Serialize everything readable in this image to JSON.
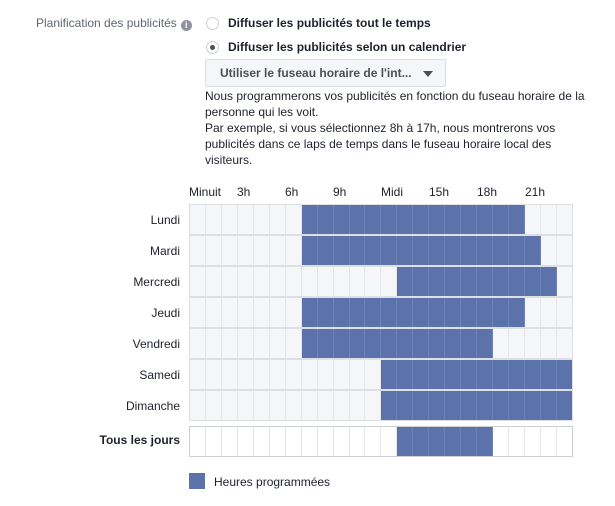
{
  "field_label": "Planification des publicités",
  "info_icon": "i",
  "options": [
    {
      "label": "Diffuser les publicités tout le temps",
      "selected": false
    },
    {
      "label": "Diffuser les publicités selon un calendrier",
      "selected": true
    }
  ],
  "timezone_dropdown": "Utiliser le fuseau horaire de l'int...",
  "help_text": [
    "Nous programmerons vos publicités en fonction du fuseau horaire de la personne qui les voit.",
    "Par exemple, si vous sélectionnez 8h à 17h, nous montrerons vos publicités dans ce laps de temps dans le fuseau horaire local des visiteurs."
  ],
  "hour_labels": [
    "Minuit",
    "3h",
    "6h",
    "9h",
    "Midi",
    "15h",
    "18h",
    "21h"
  ],
  "schedule": [
    {
      "day": "Lundi",
      "start": 7,
      "end": 21
    },
    {
      "day": "Mardi",
      "start": 7,
      "end": 22
    },
    {
      "day": "Mercredi",
      "start": 13,
      "end": 23
    },
    {
      "day": "Jeudi",
      "start": 7,
      "end": 21
    },
    {
      "day": "Vendredi",
      "start": 7,
      "end": 19
    },
    {
      "day": "Samedi",
      "start": 12,
      "end": 24
    },
    {
      "day": "Dimanche",
      "start": 12,
      "end": 24
    }
  ],
  "all_days": {
    "label": "Tous les jours",
    "start": 13,
    "end": 19
  },
  "legend": "Heures programmées",
  "colors": {
    "scheduled": "#5b72aa"
  }
}
